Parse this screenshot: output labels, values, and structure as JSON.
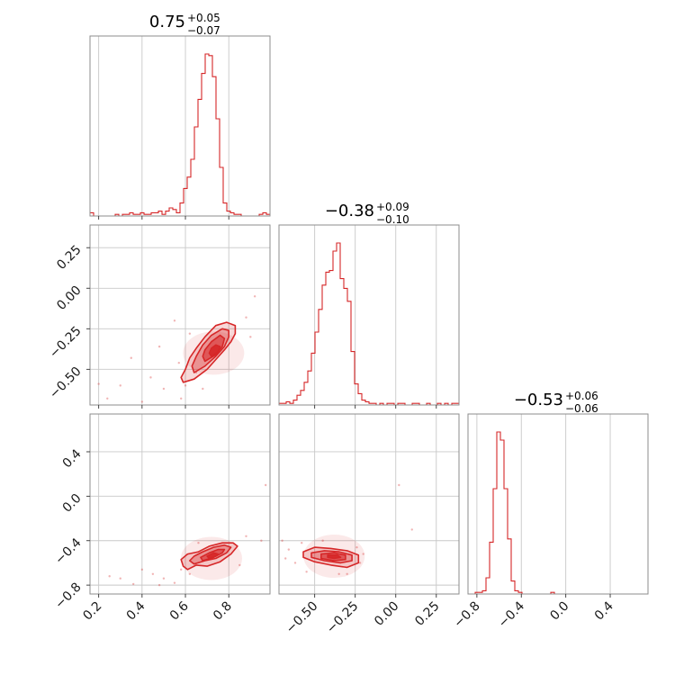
{
  "chart_data": {
    "type": "corner",
    "color": "#d62728",
    "parameters": [
      {
        "title_value": "0.75",
        "title_plus": "+0.05",
        "title_minus": "−0.07",
        "range": [
          0.16,
          0.99
        ],
        "ticks": [
          0.2,
          0.4,
          0.6,
          0.8
        ],
        "tick_labels": [
          "0.2",
          "0.4",
          "0.6",
          "0.8"
        ],
        "hist_start": 0.16,
        "hist_bin_width": 0.0166,
        "hist_counts": [
          2,
          0,
          0,
          0,
          0,
          0,
          0,
          1,
          0,
          1,
          1,
          2,
          1,
          1,
          2,
          1,
          1,
          2,
          2,
          3,
          1,
          3,
          5,
          4,
          2,
          8,
          17,
          24,
          35,
          55,
          72,
          88,
          100,
          99,
          86,
          60,
          30,
          8,
          3,
          2,
          1,
          1,
          0,
          0,
          0,
          0,
          0,
          1,
          2,
          1
        ]
      },
      {
        "title_value": "−0.38",
        "title_plus": "+0.09",
        "title_minus": "−0.10",
        "range": [
          -0.72,
          0.39
        ],
        "ticks": [
          -0.5,
          -0.25,
          0.0,
          0.25
        ],
        "tick_labels": [
          "−0.50",
          "−0.25",
          "0.00",
          "0.25"
        ],
        "y_tick_labels": [
          "−0.50",
          "−0.25",
          "0.00",
          "0.25"
        ],
        "hist_start": -0.72,
        "hist_bin_width": 0.0222,
        "hist_counts": [
          1,
          1,
          2,
          1,
          3,
          6,
          9,
          14,
          21,
          32,
          45,
          59,
          74,
          82,
          83,
          95,
          100,
          78,
          72,
          64,
          33,
          13,
          7,
          3,
          2,
          1,
          1,
          0,
          1,
          0,
          1,
          1,
          0,
          1,
          1,
          0,
          0,
          1,
          1,
          0,
          0,
          1,
          0,
          0,
          1,
          0,
          1,
          0,
          1,
          1
        ]
      },
      {
        "title_value": "−0.53",
        "title_plus": "+0.06",
        "title_minus": "−0.06",
        "range": [
          -0.88,
          0.74
        ],
        "ticks": [
          -0.8,
          -0.4,
          0.0,
          0.4
        ],
        "tick_labels": [
          "−0.8",
          "−0.4",
          "0.0",
          "0.4"
        ],
        "y_tick_labels": [
          "−0.8",
          "−0.4",
          "0.0",
          "0.4"
        ],
        "hist_start": -0.88,
        "hist_bin_width": 0.0324,
        "hist_counts": [
          0,
          0,
          1,
          1,
          2,
          10,
          32,
          65,
          100,
          95,
          65,
          34,
          8,
          2,
          1,
          0,
          0,
          0,
          0,
          0,
          0,
          0,
          0,
          1,
          0,
          0,
          0,
          0,
          0,
          0,
          0,
          0,
          0,
          0,
          0,
          0,
          0,
          0,
          0,
          0,
          0,
          0,
          0,
          0,
          0,
          0,
          0,
          0,
          0,
          0
        ]
      }
    ],
    "pairs": [
      {
        "x_param": 0,
        "y_param": 1,
        "peak": [
          0.73,
          -0.4
        ],
        "points": [
          [
            0.55,
            -0.2
          ],
          [
            0.6,
            -0.6
          ],
          [
            0.65,
            -0.52
          ],
          [
            0.57,
            -0.46
          ],
          [
            0.5,
            -0.62
          ],
          [
            0.44,
            -0.55
          ],
          [
            0.3,
            -0.6
          ],
          [
            0.24,
            -0.68
          ],
          [
            0.92,
            -0.05
          ],
          [
            0.88,
            -0.18
          ],
          [
            0.35,
            -0.43
          ],
          [
            0.48,
            -0.36
          ],
          [
            0.62,
            -0.28
          ],
          [
            0.9,
            -0.3
          ],
          [
            0.2,
            -0.59
          ],
          [
            0.4,
            -0.7
          ],
          [
            0.58,
            -0.68
          ],
          [
            0.68,
            -0.62
          ]
        ],
        "contours": [
          [
            [
              0.59,
              -0.58
            ],
            [
              0.64,
              -0.56
            ],
            [
              0.7,
              -0.5
            ],
            [
              0.74,
              -0.44
            ],
            [
              0.78,
              -0.38
            ],
            [
              0.81,
              -0.33
            ],
            [
              0.83,
              -0.28
            ],
            [
              0.83,
              -0.23
            ],
            [
              0.79,
              -0.21
            ],
            [
              0.74,
              -0.23
            ],
            [
              0.69,
              -0.3
            ],
            [
              0.65,
              -0.37
            ],
            [
              0.62,
              -0.43
            ],
            [
              0.6,
              -0.5
            ],
            [
              0.58,
              -0.55
            ]
          ],
          [
            [
              0.64,
              -0.52
            ],
            [
              0.69,
              -0.48
            ],
            [
              0.74,
              -0.42
            ],
            [
              0.78,
              -0.36
            ],
            [
              0.8,
              -0.3
            ],
            [
              0.8,
              -0.26
            ],
            [
              0.77,
              -0.25
            ],
            [
              0.72,
              -0.29
            ],
            [
              0.68,
              -0.35
            ],
            [
              0.65,
              -0.42
            ],
            [
              0.63,
              -0.48
            ]
          ],
          [
            [
              0.69,
              -0.45
            ],
            [
              0.74,
              -0.41
            ],
            [
              0.77,
              -0.36
            ],
            [
              0.78,
              -0.31
            ],
            [
              0.76,
              -0.29
            ],
            [
              0.72,
              -0.33
            ],
            [
              0.69,
              -0.38
            ],
            [
              0.68,
              -0.42
            ]
          ],
          [
            [
              0.72,
              -0.42
            ],
            [
              0.75,
              -0.39
            ],
            [
              0.76,
              -0.36
            ],
            [
              0.74,
              -0.35
            ],
            [
              0.72,
              -0.37
            ],
            [
              0.71,
              -0.4
            ]
          ]
        ]
      },
      {
        "x_param": 0,
        "y_param": 2,
        "peak": [
          0.72,
          -0.56
        ],
        "points": [
          [
            0.3,
            -0.74
          ],
          [
            0.36,
            -0.79
          ],
          [
            0.45,
            -0.7
          ],
          [
            0.5,
            -0.74
          ],
          [
            0.55,
            -0.78
          ],
          [
            0.4,
            -0.66
          ],
          [
            0.62,
            -0.7
          ],
          [
            0.88,
            -0.36
          ],
          [
            0.95,
            -0.4
          ],
          [
            0.97,
            0.1
          ],
          [
            0.58,
            -0.66
          ],
          [
            0.25,
            -0.72
          ],
          [
            0.66,
            -0.42
          ],
          [
            0.85,
            -0.62
          ],
          [
            0.48,
            -0.8
          ]
        ],
        "contours": [
          [
            [
              0.61,
              -0.66
            ],
            [
              0.65,
              -0.62
            ],
            [
              0.7,
              -0.63
            ],
            [
              0.76,
              -0.59
            ],
            [
              0.81,
              -0.52
            ],
            [
              0.84,
              -0.45
            ],
            [
              0.82,
              -0.42
            ],
            [
              0.77,
              -0.42
            ],
            [
              0.71,
              -0.45
            ],
            [
              0.66,
              -0.5
            ],
            [
              0.61,
              -0.52
            ],
            [
              0.58,
              -0.57
            ],
            [
              0.59,
              -0.63
            ]
          ],
          [
            [
              0.64,
              -0.61
            ],
            [
              0.69,
              -0.58
            ],
            [
              0.74,
              -0.56
            ],
            [
              0.79,
              -0.51
            ],
            [
              0.81,
              -0.46
            ],
            [
              0.78,
              -0.44
            ],
            [
              0.73,
              -0.46
            ],
            [
              0.68,
              -0.5
            ],
            [
              0.64,
              -0.54
            ],
            [
              0.62,
              -0.58
            ]
          ],
          [
            [
              0.68,
              -0.58
            ],
            [
              0.73,
              -0.55
            ],
            [
              0.77,
              -0.51
            ],
            [
              0.78,
              -0.48
            ],
            [
              0.75,
              -0.48
            ],
            [
              0.71,
              -0.51
            ],
            [
              0.67,
              -0.55
            ]
          ],
          [
            [
              0.71,
              -0.56
            ],
            [
              0.74,
              -0.54
            ],
            [
              0.75,
              -0.52
            ],
            [
              0.73,
              -0.51
            ],
            [
              0.7,
              -0.54
            ]
          ]
        ]
      },
      {
        "x_param": 1,
        "y_param": 2,
        "peak": [
          -0.38,
          -0.54
        ],
        "points": [
          [
            -0.7,
            -0.4
          ],
          [
            -0.66,
            -0.48
          ],
          [
            -0.62,
            -0.6
          ],
          [
            -0.55,
            -0.68
          ],
          [
            -0.24,
            -0.46
          ],
          [
            -0.22,
            -0.6
          ],
          [
            -0.3,
            -0.7
          ],
          [
            0.02,
            0.1
          ],
          [
            0.1,
            -0.3
          ],
          [
            -0.58,
            -0.42
          ],
          [
            -0.2,
            -0.52
          ],
          [
            -0.68,
            -0.56
          ],
          [
            -0.45,
            -0.4
          ],
          [
            -0.35,
            -0.7
          ]
        ],
        "contours": [
          [
            [
              -0.57,
              -0.5
            ],
            [
              -0.5,
              -0.46
            ],
            [
              -0.4,
              -0.47
            ],
            [
              -0.3,
              -0.49
            ],
            [
              -0.23,
              -0.53
            ],
            [
              -0.23,
              -0.6
            ],
            [
              -0.3,
              -0.64
            ],
            [
              -0.4,
              -0.62
            ],
            [
              -0.5,
              -0.59
            ],
            [
              -0.57,
              -0.55
            ]
          ],
          [
            [
              -0.52,
              -0.51
            ],
            [
              -0.44,
              -0.49
            ],
            [
              -0.35,
              -0.5
            ],
            [
              -0.27,
              -0.53
            ],
            [
              -0.27,
              -0.58
            ],
            [
              -0.34,
              -0.6
            ],
            [
              -0.44,
              -0.58
            ],
            [
              -0.52,
              -0.55
            ]
          ],
          [
            [
              -0.46,
              -0.52
            ],
            [
              -0.38,
              -0.51
            ],
            [
              -0.31,
              -0.53
            ],
            [
              -0.31,
              -0.57
            ],
            [
              -0.38,
              -0.58
            ],
            [
              -0.46,
              -0.56
            ]
          ],
          [
            [
              -0.42,
              -0.53
            ],
            [
              -0.36,
              -0.53
            ],
            [
              -0.34,
              -0.55
            ],
            [
              -0.38,
              -0.56
            ],
            [
              -0.42,
              -0.55
            ]
          ]
        ]
      }
    ],
    "grid": true,
    "contour_levels": 4,
    "x_tick_rotation_deg": 45,
    "y_tick_rotation_deg": 45
  }
}
